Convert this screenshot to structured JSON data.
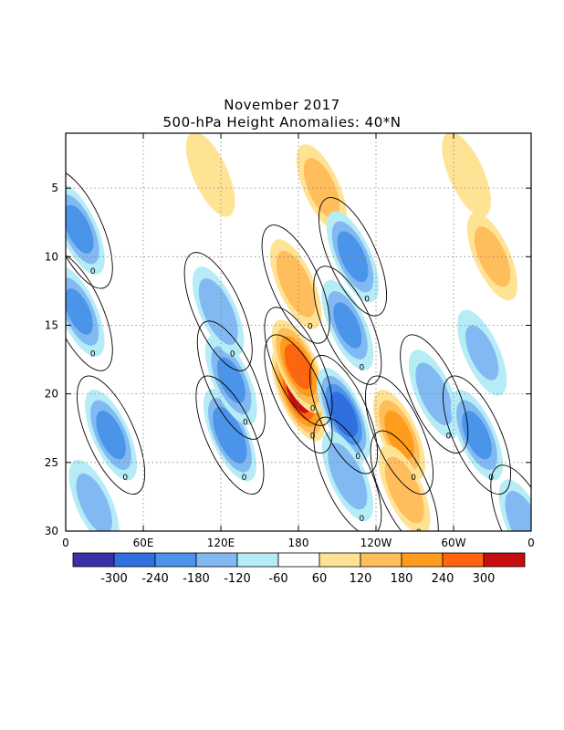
{
  "chart_data": {
    "type": "heatmap",
    "title": "November 2017",
    "subtitle": "500-hPa Height Anomalies: 40*N",
    "x_ticks": [
      {
        "lon": 0,
        "label": "0"
      },
      {
        "lon": 60,
        "label": "60E"
      },
      {
        "lon": 120,
        "label": "120E"
      },
      {
        "lon": 180,
        "label": "180"
      },
      {
        "lon": 240,
        "label": "120W"
      },
      {
        "lon": 300,
        "label": "60W"
      },
      {
        "lon": 360,
        "label": "0"
      }
    ],
    "y_ticks": [
      {
        "day": 5,
        "label": "5"
      },
      {
        "day": 10,
        "label": "10"
      },
      {
        "day": 15,
        "label": "15"
      },
      {
        "day": 20,
        "label": "20"
      },
      {
        "day": 25,
        "label": "25"
      },
      {
        "day": 30,
        "label": "30"
      }
    ],
    "x_range": [
      0,
      360
    ],
    "y_range": [
      1,
      30
    ],
    "grid": true,
    "contour_zero_label": "0",
    "colorbar": {
      "colors": [
        "#3d2fa8",
        "#2f6fe0",
        "#4a95ea",
        "#82b9f2",
        "#b5ecf6",
        "#ffffff",
        "#ffe394",
        "#ffbd5c",
        "#ff9c1c",
        "#fe650e",
        "#c70d0d"
      ],
      "labels": [
        "-300",
        "-240",
        "-180",
        "-120",
        "-60",
        "60",
        "120",
        "180",
        "240",
        "300"
      ]
    },
    "anomaly_features": [
      {
        "lon": 180,
        "day": 20,
        "value": 300
      },
      {
        "lon": 180,
        "day": 18,
        "value": 260
      },
      {
        "lon": 178,
        "day": 12,
        "value": 170
      },
      {
        "lon": 198,
        "day": 5,
        "value": 140
      },
      {
        "lon": 112,
        "day": 4,
        "value": 110
      },
      {
        "lon": 258,
        "day": 23,
        "value": 190
      },
      {
        "lon": 262,
        "day": 27,
        "value": 170
      },
      {
        "lon": 330,
        "day": 10,
        "value": 140
      },
      {
        "lon": 310,
        "day": 4,
        "value": 110
      },
      {
        "lon": 215,
        "day": 21.5,
        "value": -260
      },
      {
        "lon": 222,
        "day": 10,
        "value": -200
      },
      {
        "lon": 218,
        "day": 15,
        "value": -180
      },
      {
        "lon": 218,
        "day": 26,
        "value": -170
      },
      {
        "lon": 127,
        "day": 23,
        "value": -230
      },
      {
        "lon": 128,
        "day": 19,
        "value": -180
      },
      {
        "lon": 118,
        "day": 14,
        "value": -170
      },
      {
        "lon": 10,
        "day": 8,
        "value": -190
      },
      {
        "lon": 10,
        "day": 14,
        "value": -180
      },
      {
        "lon": 35,
        "day": 23,
        "value": -190
      },
      {
        "lon": 22,
        "day": 28,
        "value": -140
      },
      {
        "lon": 285,
        "day": 20,
        "value": -150
      },
      {
        "lon": 318,
        "day": 23,
        "value": -190
      },
      {
        "lon": 322,
        "day": 17,
        "value": -120
      },
      {
        "lon": 355,
        "day": 29.5,
        "value": -170
      }
    ]
  }
}
